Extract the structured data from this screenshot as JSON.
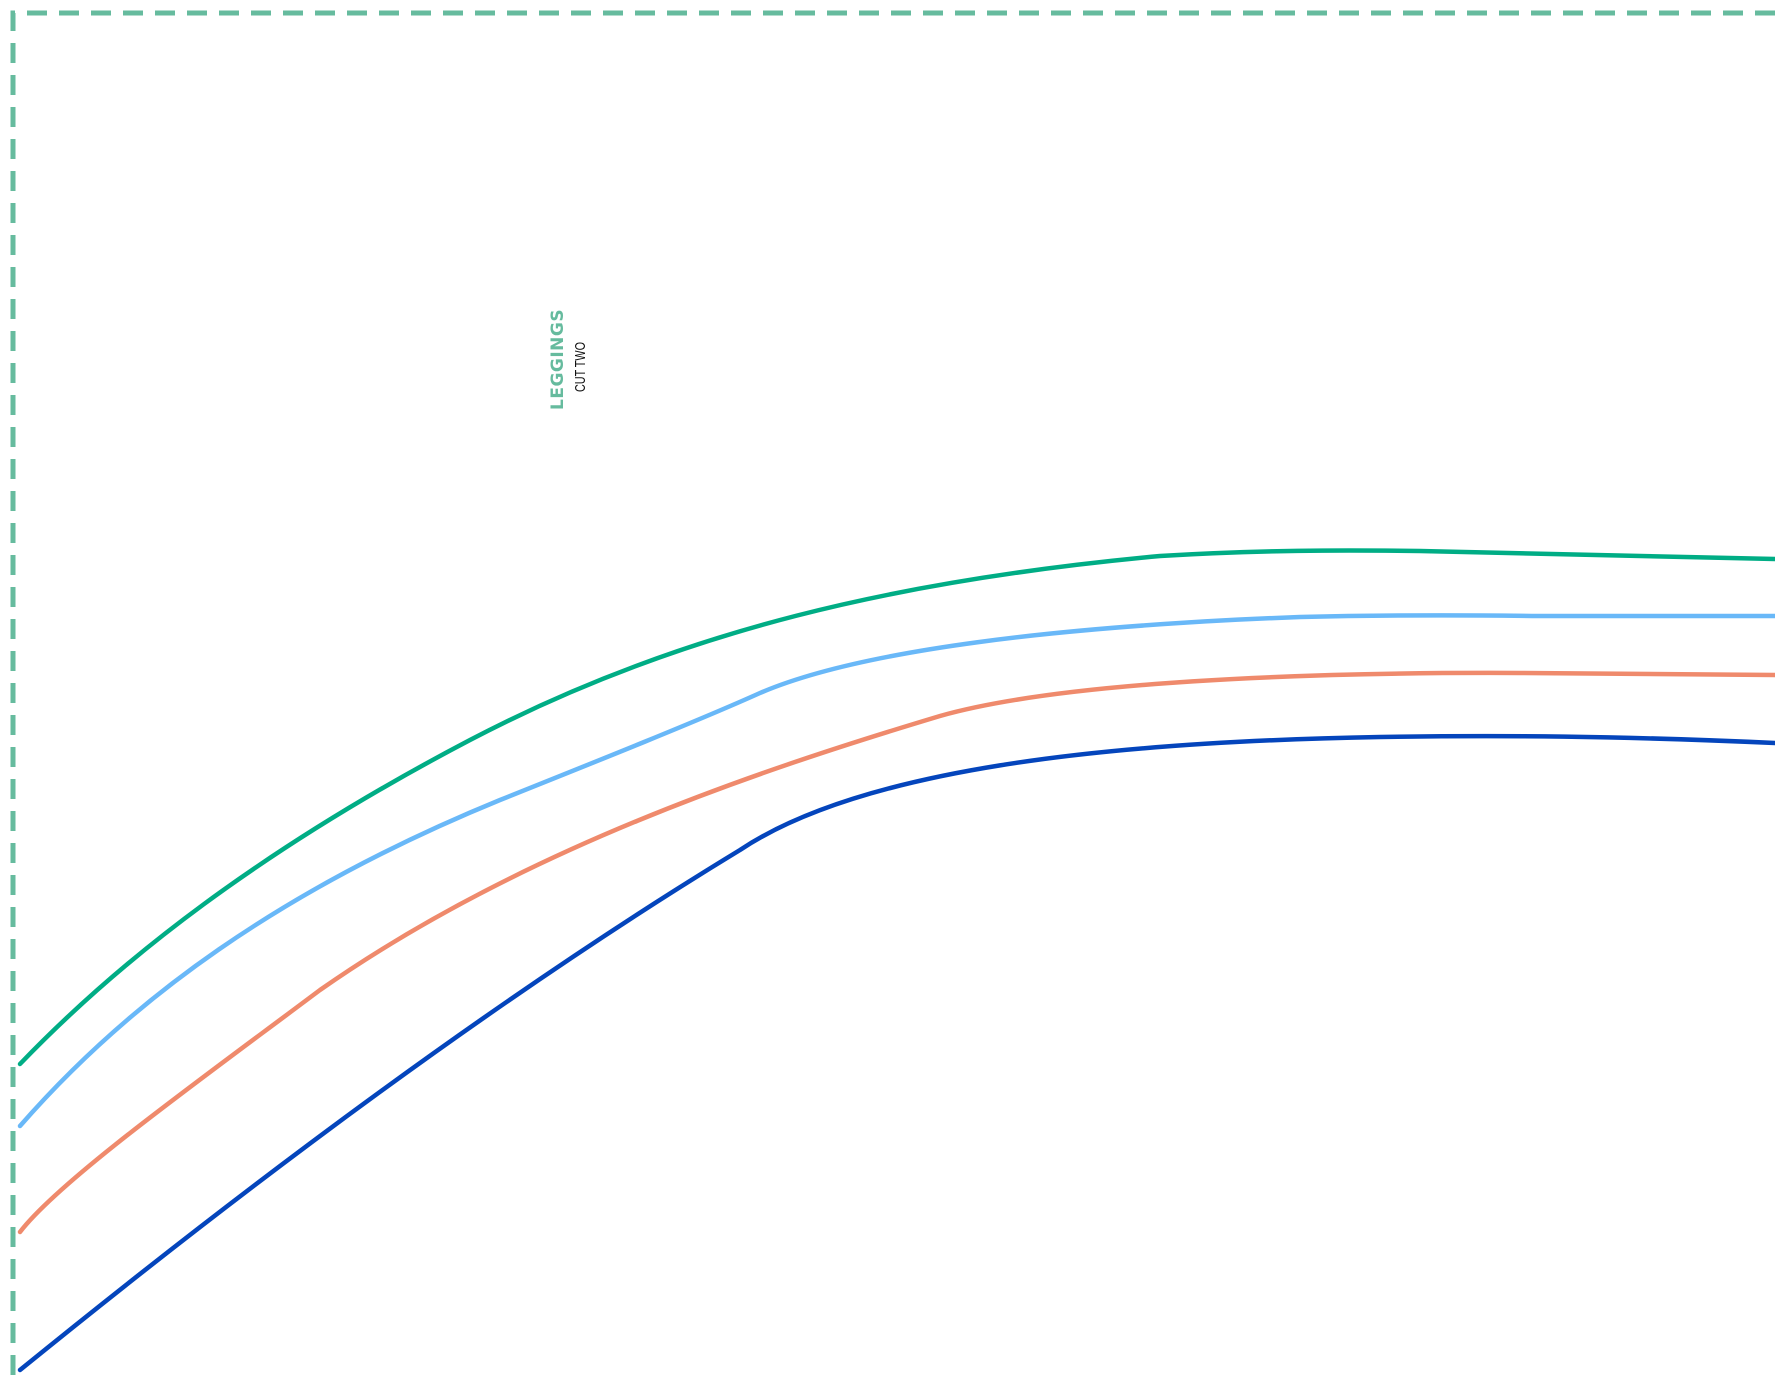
{
  "pattern": {
    "piece_name": "LEGGINGS",
    "instruction": "CUT TWO"
  },
  "colors": {
    "border": "#66bb9e",
    "title": "#66bb9e",
    "size_1": "#00ad85",
    "size_2": "#69b8f8",
    "size_3": "#ef8a6c",
    "size_4": "#0445bc"
  },
  "border_style": "dashed"
}
